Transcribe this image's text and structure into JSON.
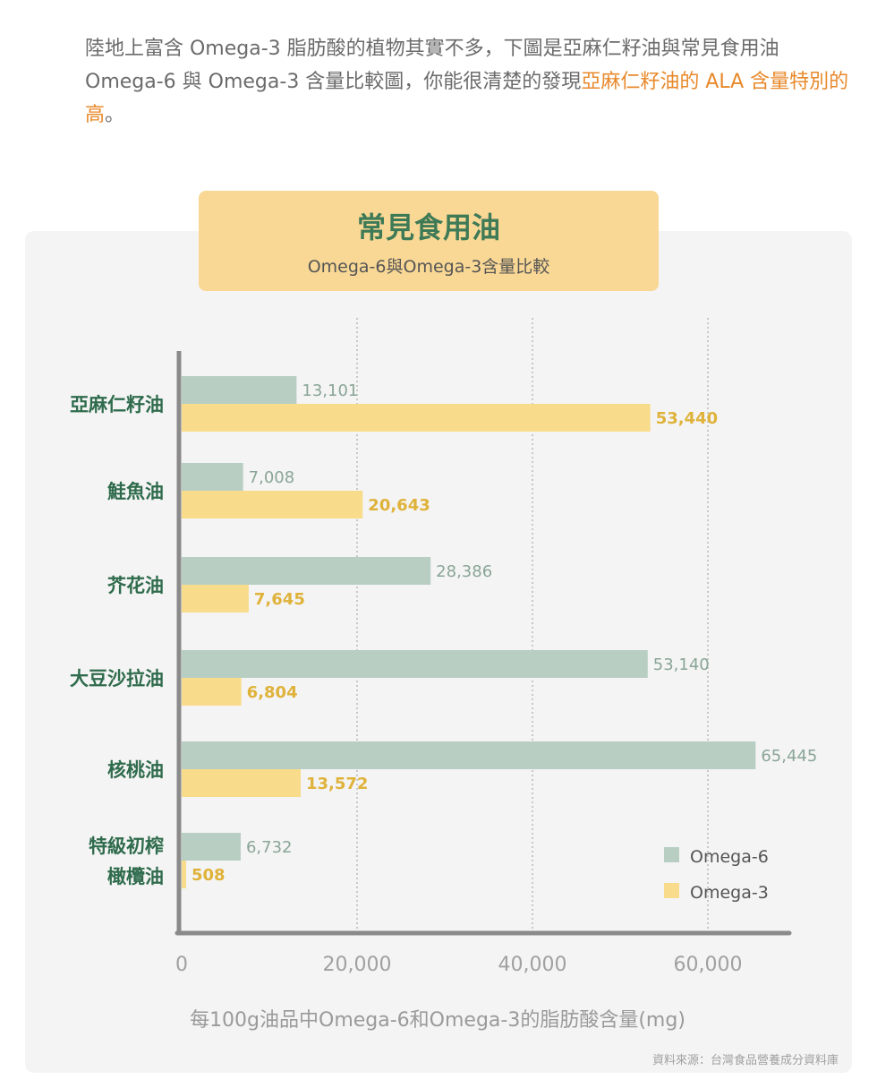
{
  "intro": {
    "text1": "陸地上富含 Omega-3 脂肪酸的植物其實不多，下圖是亞麻仁籽油與常見食用油 Omega-6 與 Omega-3 含量比較圖，你能很清楚的發現",
    "highlight": "亞麻仁籽油的 ALA 含量特別的高",
    "end": "。"
  },
  "chart_data": {
    "type": "bar",
    "orientation": "horizontal",
    "title": "常見食用油",
    "subtitle": "Omega-6與Omega-3含量比較",
    "categories": [
      [
        "亞麻仁籽油"
      ],
      [
        "鮭魚油"
      ],
      [
        "芥花油"
      ],
      [
        "大豆沙拉油"
      ],
      [
        "核桃油"
      ],
      [
        "特級初榨",
        "橄欖油"
      ]
    ],
    "series": [
      {
        "name": "Omega-6",
        "color": "#b8cec3",
        "label_color": "#8aa597",
        "values": [
          13101,
          7008,
          28386,
          53140,
          65445,
          6732
        ],
        "labels": [
          "13,101",
          "7,008",
          "28,386",
          "53,140",
          "65,445",
          "6,732"
        ]
      },
      {
        "name": "Omega-3",
        "color": "#f8dc8b",
        "label_color": "#dfb23a",
        "values": [
          53440,
          20643,
          7645,
          6804,
          13572,
          508
        ],
        "labels": [
          "53,440",
          "20,643",
          "7,645",
          "6,804",
          "13,572",
          "508"
        ]
      }
    ],
    "xticks": [
      0,
      20000,
      40000,
      60000
    ],
    "xtick_labels": [
      "0",
      "20,000",
      "40,000",
      "60,000"
    ],
    "xlim": [
      0,
      68000
    ],
    "grid": "vertical dotted",
    "legend": "bottom-right",
    "xlabel": "每100g油品中Omega-6和Omega-3的脂肪酸含量(mg)",
    "source": "資料來源：台灣食品營養成分資料庫"
  }
}
